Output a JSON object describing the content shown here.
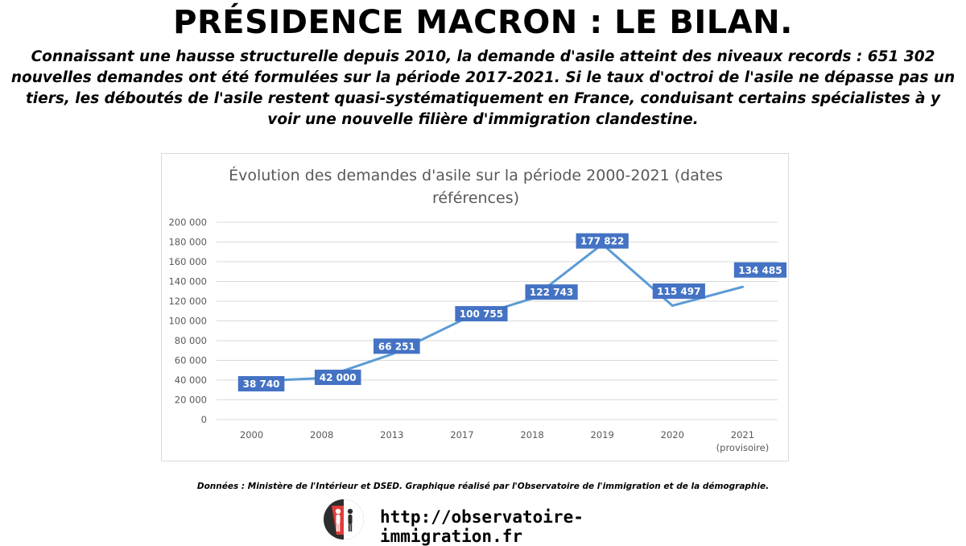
{
  "header": {
    "headline": "PRÉSIDENCE MACRON : LE BILAN.",
    "intro": "Connaissant une hausse structurelle depuis 2010, la demande d'asile atteint des niveaux records : 651 302 nouvelles demandes ont été formulées sur la période 2017-2021. Si le taux d'octroi de l'asile ne dépasse pas un tiers, les déboutés de l'asile restent quasi-systématiquement en France, conduisant certains spécialistes à y voir une nouvelle filière d'immigration clandestine."
  },
  "chart_data": {
    "type": "line",
    "title": "Évolution des demandes d'asile sur la période 2000-2021 (dates références)",
    "title_lines": [
      "Évolution des demandes d'asile sur la période 2000-2021 (dates",
      "références)"
    ],
    "categories": [
      "2000",
      "2008",
      "2013",
      "2017",
      "2018",
      "2019",
      "2020",
      "2021"
    ],
    "category_sublabels": [
      "",
      "",
      "",
      "",
      "",
      "",
      "",
      "(provisoire)"
    ],
    "values": [
      38740,
      42000,
      66251,
      100755,
      122743,
      177822,
      115497,
      134485
    ],
    "data_labels": [
      "38 740",
      "42 000",
      "66 251",
      "100 755",
      "122 743",
      "177 822",
      "115 497",
      "134 485"
    ],
    "ylim": [
      0,
      200000
    ],
    "ytick_values": [
      0,
      20000,
      40000,
      60000,
      80000,
      100000,
      120000,
      140000,
      160000,
      180000,
      200000
    ],
    "ytick_labels": [
      "0",
      "20 000",
      "40 000",
      "60 000",
      "80 000",
      "100 000",
      "120 000",
      "140 000",
      "160 000",
      "180 000",
      "200 000"
    ],
    "grid": true,
    "line_color": "#5b9bd5",
    "label_bg_color": "#4472c4",
    "label_text_color": "#ffffff"
  },
  "credits": "Données : Ministère de l'Intérieur et DSED. Graphique réalisé par l'Observatoire de l'immigration et de la démographie.",
  "footer": {
    "site_url": "http://observatoire-immigration.fr",
    "logo_icon": "observatoire-logo-icon"
  }
}
